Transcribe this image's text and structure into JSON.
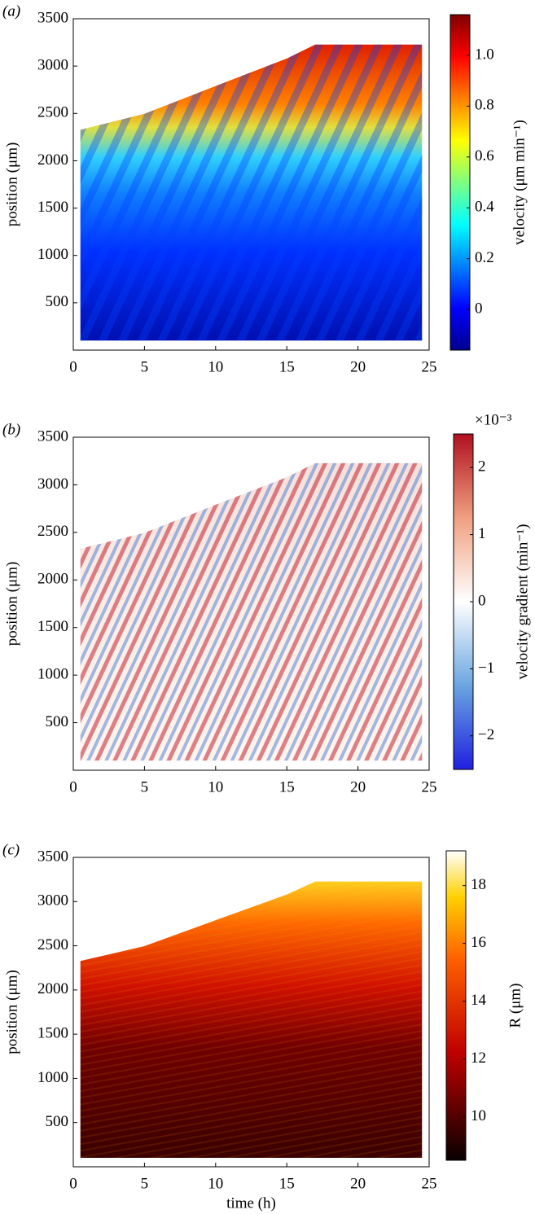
{
  "chart_data": [
    {
      "type": "heatmap",
      "panel_label": "(a)",
      "ylabel": "position (μm)",
      "xlim": [
        0,
        25
      ],
      "xticks": [
        0,
        5,
        10,
        15,
        20,
        25
      ],
      "ylim": [
        0,
        3500
      ],
      "yticks": [
        500,
        1000,
        1500,
        2000,
        2500,
        3000,
        3500
      ],
      "colormap": "jet",
      "colorbar": {
        "label": "velocity (μm min⁻¹)",
        "lim": [
          -0.16,
          1.16
        ],
        "ticks": [
          0,
          {
            "value": 0.2,
            "label": "0.2"
          },
          {
            "value": 0.4,
            "label": "0.4"
          },
          {
            "value": 0.6,
            "label": "0.6"
          },
          {
            "value": 0.8,
            "label": "0.8"
          },
          {
            "value": 1.0,
            "label": "1.0"
          }
        ]
      }
    },
    {
      "type": "heatmap",
      "panel_label": "(b)",
      "ylabel": "position (μm)",
      "xlim": [
        0,
        25
      ],
      "xticks": [
        0,
        5,
        10,
        15,
        20,
        25
      ],
      "ylim": [
        0,
        3500
      ],
      "yticks": [
        500,
        1000,
        1500,
        2000,
        2500,
        3000,
        3500
      ],
      "colormap": "diverging",
      "colorbar": {
        "label": "velocity gradient (min⁻¹)",
        "exponent": "×10⁻³",
        "lim": [
          -2.5,
          2.5
        ],
        "ticks": [
          {
            "value": -2,
            "label": "−2"
          },
          {
            "value": -1,
            "label": "−1"
          },
          0,
          1,
          2
        ]
      }
    },
    {
      "type": "heatmap",
      "panel_label": "(c)",
      "ylabel": "position (μm)",
      "xlabel": "time (h)",
      "xlim": [
        0,
        25
      ],
      "xticks": [
        0,
        5,
        10,
        15,
        20,
        25
      ],
      "ylim": [
        0,
        3500
      ],
      "yticks": [
        500,
        1000,
        1500,
        2000,
        2500,
        3000,
        3500
      ],
      "colormap": "hot",
      "colorbar": {
        "label": "R (μm)",
        "lim": [
          8.5,
          19.2
        ],
        "ticks": [
          10,
          12,
          14,
          16,
          18
        ]
      }
    }
  ]
}
